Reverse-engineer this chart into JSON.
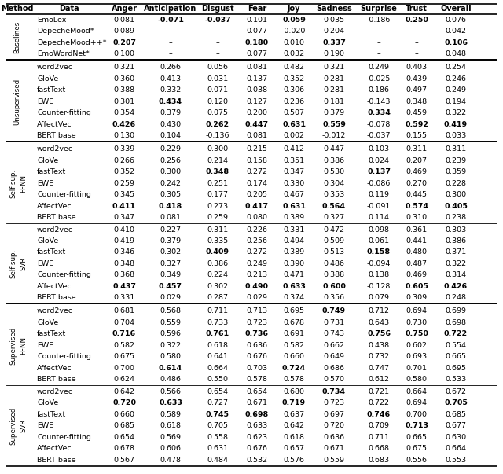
{
  "headers": [
    "Method",
    "Data",
    "Anger",
    "Anticipation",
    "Disgust",
    "Fear",
    "Joy",
    "Sadness",
    "Surprise",
    "Trust",
    "Overall"
  ],
  "sections": [
    {
      "method_label": "Baselines",
      "sub_label": null,
      "rows": [
        [
          "EmoLex",
          "0.081",
          "-0.071",
          "-0.037",
          "0.101",
          "0.059",
          "0.035",
          "-0.186",
          "0.250",
          "0.076"
        ],
        [
          "DepecheMood*",
          "0.089",
          "–",
          "–",
          "0.077",
          "-0.020",
          "0.204",
          "–",
          "–",
          "0.042"
        ],
        [
          "DepecheMood++*",
          "0.207",
          "–",
          "–",
          "0.180",
          "0.010",
          "0.337",
          "–",
          "–",
          "0.106"
        ],
        [
          "EmoWordNet*",
          "0.100",
          "–",
          "–",
          "0.077",
          "0.032",
          "0.190",
          "–",
          "–",
          "0.048"
        ]
      ],
      "bold": [
        [
          false,
          true,
          true,
          false,
          true,
          false,
          false,
          true,
          false
        ],
        [
          false,
          false,
          false,
          false,
          false,
          false,
          false,
          false,
          false
        ],
        [
          true,
          false,
          false,
          true,
          false,
          true,
          false,
          false,
          true
        ],
        [
          false,
          false,
          false,
          false,
          false,
          false,
          false,
          false,
          false
        ]
      ]
    },
    {
      "method_label": "Unsupervised",
      "sub_label": null,
      "rows": [
        [
          "word2vec",
          "0.321",
          "0.266",
          "0.056",
          "0.081",
          "0.482",
          "0.321",
          "0.249",
          "0.403",
          "0.254"
        ],
        [
          "GloVe",
          "0.360",
          "0.413",
          "0.031",
          "0.137",
          "0.352",
          "0.281",
          "-0.025",
          "0.439",
          "0.246"
        ],
        [
          "fastText",
          "0.388",
          "0.332",
          "0.071",
          "0.038",
          "0.306",
          "0.281",
          "0.186",
          "0.497",
          "0.249"
        ],
        [
          "EWE",
          "0.301",
          "0.434",
          "0.120",
          "0.127",
          "0.236",
          "0.181",
          "-0.143",
          "0.348",
          "0.194"
        ],
        [
          "Counter-fitting",
          "0.354",
          "0.379",
          "0.075",
          "0.200",
          "0.507",
          "0.379",
          "0.334",
          "0.459",
          "0.322"
        ],
        [
          "AffectVec",
          "0.426",
          "0.430",
          "0.262",
          "0.447",
          "0.631",
          "0.559",
          "-0.078",
          "0.592",
          "0.419"
        ],
        [
          "BERT base",
          "0.130",
          "0.104",
          "-0.136",
          "0.081",
          "0.002",
          "-0.012",
          "-0.037",
          "0.155",
          "0.033"
        ]
      ],
      "bold": [
        [
          false,
          false,
          false,
          false,
          false,
          false,
          false,
          false,
          false
        ],
        [
          false,
          false,
          false,
          false,
          false,
          false,
          false,
          false,
          false
        ],
        [
          false,
          false,
          false,
          false,
          false,
          false,
          false,
          false,
          false
        ],
        [
          false,
          true,
          false,
          false,
          false,
          false,
          false,
          false,
          false
        ],
        [
          false,
          false,
          false,
          false,
          false,
          false,
          true,
          false,
          false
        ],
        [
          true,
          false,
          true,
          true,
          true,
          true,
          false,
          true,
          true
        ],
        [
          false,
          false,
          false,
          false,
          false,
          false,
          false,
          false,
          false
        ]
      ]
    },
    {
      "method_label": "Self-sup.",
      "sub_label": "FFNN",
      "rows": [
        [
          "word2vec",
          "0.339",
          "0.229",
          "0.300",
          "0.215",
          "0.412",
          "0.447",
          "0.103",
          "0.311",
          "0.311"
        ],
        [
          "GloVe",
          "0.266",
          "0.256",
          "0.214",
          "0.158",
          "0.351",
          "0.386",
          "0.024",
          "0.207",
          "0.239"
        ],
        [
          "fastText",
          "0.352",
          "0.300",
          "0.348",
          "0.272",
          "0.347",
          "0.530",
          "0.137",
          "0.469",
          "0.359"
        ],
        [
          "EWE",
          "0.259",
          "0.242",
          "0.251",
          "0.174",
          "0.330",
          "0.304",
          "-0.086",
          "0.270",
          "0.228"
        ],
        [
          "Counter-fitting",
          "0.345",
          "0.305",
          "0.177",
          "0.205",
          "0.467",
          "0.353",
          "0.119",
          "0.445",
          "0.300"
        ],
        [
          "AffectVec",
          "0.411",
          "0.418",
          "0.273",
          "0.417",
          "0.631",
          "0.564",
          "-0.091",
          "0.574",
          "0.405"
        ],
        [
          "BERT base",
          "0.347",
          "0.081",
          "0.259",
          "0.080",
          "0.389",
          "0.327",
          "0.114",
          "0.310",
          "0.238"
        ]
      ],
      "bold": [
        [
          false,
          false,
          false,
          false,
          false,
          false,
          false,
          false,
          false
        ],
        [
          false,
          false,
          false,
          false,
          false,
          false,
          false,
          false,
          false
        ],
        [
          false,
          false,
          true,
          false,
          false,
          false,
          true,
          false,
          false
        ],
        [
          false,
          false,
          false,
          false,
          false,
          false,
          false,
          false,
          false
        ],
        [
          false,
          false,
          false,
          false,
          false,
          false,
          false,
          false,
          false
        ],
        [
          true,
          true,
          false,
          true,
          true,
          true,
          false,
          true,
          true
        ],
        [
          false,
          false,
          false,
          false,
          false,
          false,
          false,
          false,
          false
        ]
      ]
    },
    {
      "method_label": "Self-sup.",
      "sub_label": "SVR",
      "rows": [
        [
          "word2vec",
          "0.410",
          "0.227",
          "0.311",
          "0.226",
          "0.331",
          "0.472",
          "0.098",
          "0.361",
          "0.303"
        ],
        [
          "GloVe",
          "0.419",
          "0.379",
          "0.335",
          "0.256",
          "0.494",
          "0.509",
          "0.061",
          "0.441",
          "0.386"
        ],
        [
          "fastText",
          "0.346",
          "0.302",
          "0.409",
          "0.272",
          "0.389",
          "0.513",
          "0.158",
          "0.480",
          "0.371"
        ],
        [
          "EWE",
          "0.348",
          "0.327",
          "0.386",
          "0.249",
          "0.390",
          "0.486",
          "-0.094",
          "0.487",
          "0.322"
        ],
        [
          "Counter-fitting",
          "0.368",
          "0.349",
          "0.224",
          "0.213",
          "0.471",
          "0.388",
          "0.138",
          "0.469",
          "0.314"
        ],
        [
          "AffectVec",
          "0.437",
          "0.457",
          "0.302",
          "0.490",
          "0.633",
          "0.600",
          "-0.128",
          "0.605",
          "0.426"
        ],
        [
          "BERT base",
          "0.331",
          "0.029",
          "0.287",
          "0.029",
          "0.374",
          "0.356",
          "0.079",
          "0.309",
          "0.248"
        ]
      ],
      "bold": [
        [
          false,
          false,
          false,
          false,
          false,
          false,
          false,
          false,
          false
        ],
        [
          false,
          false,
          false,
          false,
          false,
          false,
          false,
          false,
          false
        ],
        [
          false,
          false,
          true,
          false,
          false,
          false,
          true,
          false,
          false
        ],
        [
          false,
          false,
          false,
          false,
          false,
          false,
          false,
          false,
          false
        ],
        [
          false,
          false,
          false,
          false,
          false,
          false,
          false,
          false,
          false
        ],
        [
          true,
          true,
          false,
          true,
          true,
          true,
          false,
          true,
          true
        ],
        [
          false,
          false,
          false,
          false,
          false,
          false,
          false,
          false,
          false
        ]
      ]
    },
    {
      "method_label": "Supervised",
      "sub_label": "FFNN",
      "rows": [
        [
          "word2vec",
          "0.681",
          "0.568",
          "0.711",
          "0.713",
          "0.695",
          "0.749",
          "0.712",
          "0.694",
          "0.699"
        ],
        [
          "GloVe",
          "0.704",
          "0.559",
          "0.733",
          "0.723",
          "0.678",
          "0.731",
          "0.643",
          "0.730",
          "0.698"
        ],
        [
          "fastText",
          "0.716",
          "0.596",
          "0.761",
          "0.736",
          "0.691",
          "0.743",
          "0.756",
          "0.750",
          "0.722"
        ],
        [
          "EWE",
          "0.582",
          "0.322",
          "0.618",
          "0.636",
          "0.582",
          "0.662",
          "0.438",
          "0.602",
          "0.554"
        ],
        [
          "Counter-fitting",
          "0.675",
          "0.580",
          "0.641",
          "0.676",
          "0.660",
          "0.649",
          "0.732",
          "0.693",
          "0.665"
        ],
        [
          "AffectVec",
          "0.700",
          "0.614",
          "0.664",
          "0.703",
          "0.724",
          "0.686",
          "0.747",
          "0.701",
          "0.695"
        ],
        [
          "BERT base",
          "0.624",
          "0.486",
          "0.550",
          "0.578",
          "0.578",
          "0.570",
          "0.612",
          "0.580",
          "0.533"
        ]
      ],
      "bold": [
        [
          false,
          false,
          false,
          false,
          false,
          true,
          false,
          false,
          false
        ],
        [
          false,
          false,
          false,
          false,
          false,
          false,
          false,
          false,
          false
        ],
        [
          true,
          false,
          true,
          true,
          false,
          false,
          true,
          true,
          true
        ],
        [
          false,
          false,
          false,
          false,
          false,
          false,
          false,
          false,
          false
        ],
        [
          false,
          false,
          false,
          false,
          false,
          false,
          false,
          false,
          false
        ],
        [
          false,
          true,
          false,
          false,
          true,
          false,
          false,
          false,
          false
        ],
        [
          false,
          false,
          false,
          false,
          false,
          false,
          false,
          false,
          false
        ]
      ]
    },
    {
      "method_label": "Supervised",
      "sub_label": "SVR",
      "rows": [
        [
          "word2vec",
          "0.642",
          "0.566",
          "0.654",
          "0.654",
          "0.680",
          "0.734",
          "0.721",
          "0.664",
          "0.672"
        ],
        [
          "GloVe",
          "0.720",
          "0.633",
          "0.727",
          "0.671",
          "0.719",
          "0.723",
          "0.722",
          "0.694",
          "0.705"
        ],
        [
          "fastText",
          "0.660",
          "0.589",
          "0.745",
          "0.698",
          "0.637",
          "0.697",
          "0.746",
          "0.700",
          "0.685"
        ],
        [
          "EWE",
          "0.685",
          "0.618",
          "0.705",
          "0.633",
          "0.642",
          "0.720",
          "0.709",
          "0.713",
          "0.677"
        ],
        [
          "Counter-fitting",
          "0.654",
          "0.569",
          "0.558",
          "0.623",
          "0.618",
          "0.636",
          "0.711",
          "0.665",
          "0.630"
        ],
        [
          "AffectVec",
          "0.678",
          "0.606",
          "0.631",
          "0.676",
          "0.657",
          "0.671",
          "0.668",
          "0.675",
          "0.664"
        ],
        [
          "BERT base",
          "0.567",
          "0.478",
          "0.484",
          "0.532",
          "0.576",
          "0.559",
          "0.683",
          "0.556",
          "0.553"
        ]
      ],
      "bold": [
        [
          false,
          false,
          false,
          false,
          false,
          true,
          false,
          false,
          false
        ],
        [
          true,
          true,
          false,
          false,
          true,
          false,
          false,
          false,
          true
        ],
        [
          false,
          false,
          true,
          true,
          false,
          false,
          true,
          false,
          false
        ],
        [
          false,
          false,
          false,
          false,
          false,
          false,
          false,
          true,
          false
        ],
        [
          false,
          false,
          false,
          false,
          false,
          false,
          false,
          false,
          false
        ],
        [
          false,
          false,
          false,
          false,
          false,
          false,
          false,
          false,
          false
        ],
        [
          false,
          false,
          false,
          false,
          false,
          false,
          false,
          false,
          false
        ]
      ]
    }
  ]
}
